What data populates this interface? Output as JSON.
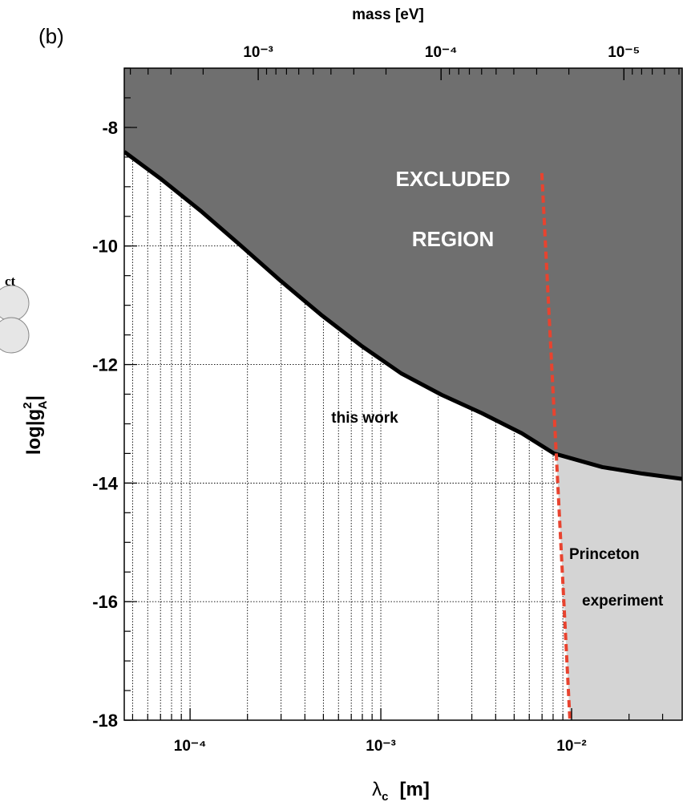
{
  "panel_label": "(b)",
  "fragment_text": "ct",
  "chart_data": {
    "type": "line",
    "xlabel": [
      "λ",
      "c",
      "[m]"
    ],
    "ylabel": [
      "log|g",
      "2",
      "A",
      "|"
    ],
    "x2label": "mass [eV]",
    "xscale": "log",
    "xlim": [
      4.52e-05,
      0.038
    ],
    "xticks": [
      {
        "value": 0.0001,
        "label": "10⁻⁴"
      },
      {
        "value": 0.001,
        "label": "10⁻³"
      },
      {
        "value": 0.01,
        "label": "10⁻²"
      }
    ],
    "x2lim": [
      0.0054,
      4.8e-06
    ],
    "x2ticks": [
      {
        "value": 0.001,
        "label": "10⁻³"
      },
      {
        "value": 0.0001,
        "label": "10⁻⁴"
      },
      {
        "value": 1e-05,
        "label": "10⁻⁵"
      }
    ],
    "ylim": [
      -18,
      -7
    ],
    "yticks": [
      -18,
      -16,
      -14,
      -12,
      -10,
      -8
    ],
    "grid": true,
    "excluded_color": "#6f6f6f",
    "allowed_color": "#d4d4d4",
    "annotations": [
      "EXCLUDED",
      "REGION"
    ],
    "series": [
      {
        "name": "this work",
        "color": "#000000",
        "x": [
          4.52e-05,
          6.98e-05,
          0.000114,
          0.000184,
          0.000299,
          0.000486,
          0.000788,
          0.00128,
          0.00208,
          0.00338,
          0.00548,
          0.00808,
          0.0145,
          0.0235,
          0.038
        ],
        "values": [
          -8.41,
          -8.86,
          -9.41,
          -9.99,
          -10.59,
          -11.16,
          -11.68,
          -12.15,
          -12.51,
          -12.82,
          -13.16,
          -13.5,
          -13.73,
          -13.84,
          -13.93
        ]
      },
      {
        "name": "Princeton experiment",
        "color": "#e8432f",
        "dashed": true,
        "x": [
          0.00698,
          0.0098
        ],
        "values": [
          -8.77,
          -18
        ]
      }
    ]
  }
}
